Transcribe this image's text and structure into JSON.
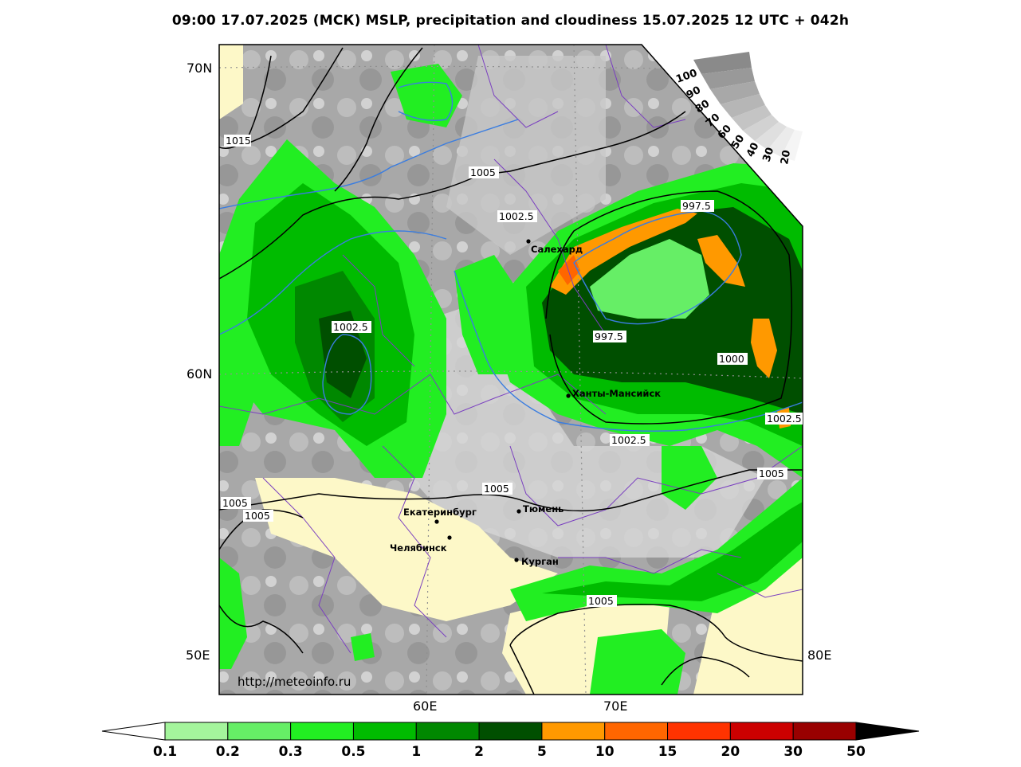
{
  "title": "09:00 17.07.2025 (МСК) MSLP, precipitation and cloudiness 15.07.2025 12 UTC + 042h",
  "credit": "http://meteoinfo.ru",
  "axes": {
    "lat_labels": [
      "70N",
      "60N",
      "50E"
    ],
    "lon_labels": [
      "60E",
      "70E",
      "80E"
    ]
  },
  "cities": [
    {
      "name": "Салехард"
    },
    {
      "name": "Ханты-Мансийск"
    },
    {
      "name": "Тюмень"
    },
    {
      "name": "Екатеринбург"
    },
    {
      "name": "Челябинск"
    },
    {
      "name": "Курган"
    }
  ],
  "isobar_labels": [
    "1015",
    "1005",
    "1002.5",
    "997.5",
    "1002.5",
    "997.5",
    "1000",
    "1002.5",
    "1002.5",
    "1005",
    "1005",
    "1005",
    "1005",
    "1005"
  ],
  "cloudiness_scale": {
    "labels": [
      "100",
      "90",
      "80",
      "70",
      "60",
      "50",
      "40",
      "30",
      "20"
    ]
  },
  "precip_scale": {
    "labels": [
      "0.1",
      "0.2",
      "0.3",
      "0.5",
      "1",
      "2",
      "5",
      "10",
      "15",
      "20",
      "30",
      "50"
    ],
    "colors": [
      "#a4f59c",
      "#66ee66",
      "#22ee22",
      "#00bb00",
      "#008800",
      "#004f00",
      "#ff9900",
      "#ff6600",
      "#ff3300",
      "#cc0000",
      "#990000"
    ]
  }
}
